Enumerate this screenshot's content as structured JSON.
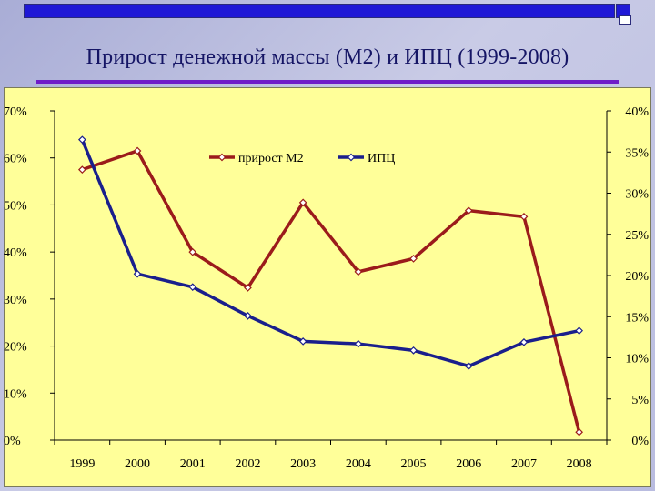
{
  "title": "Прирост денежной массы (М2) и ИПЦ (1999-2008)",
  "chart_data": {
    "type": "line",
    "title": "Прирост денежной массы (М2) и ИПЦ (1999-2008)",
    "categories": [
      "1999",
      "2000",
      "2001",
      "2002",
      "2003",
      "2004",
      "2005",
      "2006",
      "2007",
      "2008"
    ],
    "y_left": {
      "ticks": [
        "70%",
        "60%",
        "50%",
        "40%",
        "30%",
        "20%",
        "10%",
        "0%"
      ],
      "range": [
        0,
        70
      ]
    },
    "y_right": {
      "ticks": [
        "40%",
        "35%",
        "30%",
        "25%",
        "20%",
        "15%",
        "10%",
        "5%",
        "0%"
      ],
      "range": [
        0,
        40
      ]
    },
    "series": [
      {
        "name": "прирост М2",
        "axis": "left",
        "color": "#9b1b1b",
        "values": [
          57.5,
          61.5,
          40.0,
          32.4,
          50.5,
          35.8,
          38.6,
          48.8,
          47.5,
          1.7
        ]
      },
      {
        "name": "ИПЦ",
        "axis": "right",
        "color": "#1a1f8c",
        "values": [
          36.5,
          20.2,
          18.6,
          15.1,
          12.0,
          11.7,
          10.9,
          9.0,
          11.9,
          13.3
        ]
      }
    ],
    "legend_position": "top"
  }
}
